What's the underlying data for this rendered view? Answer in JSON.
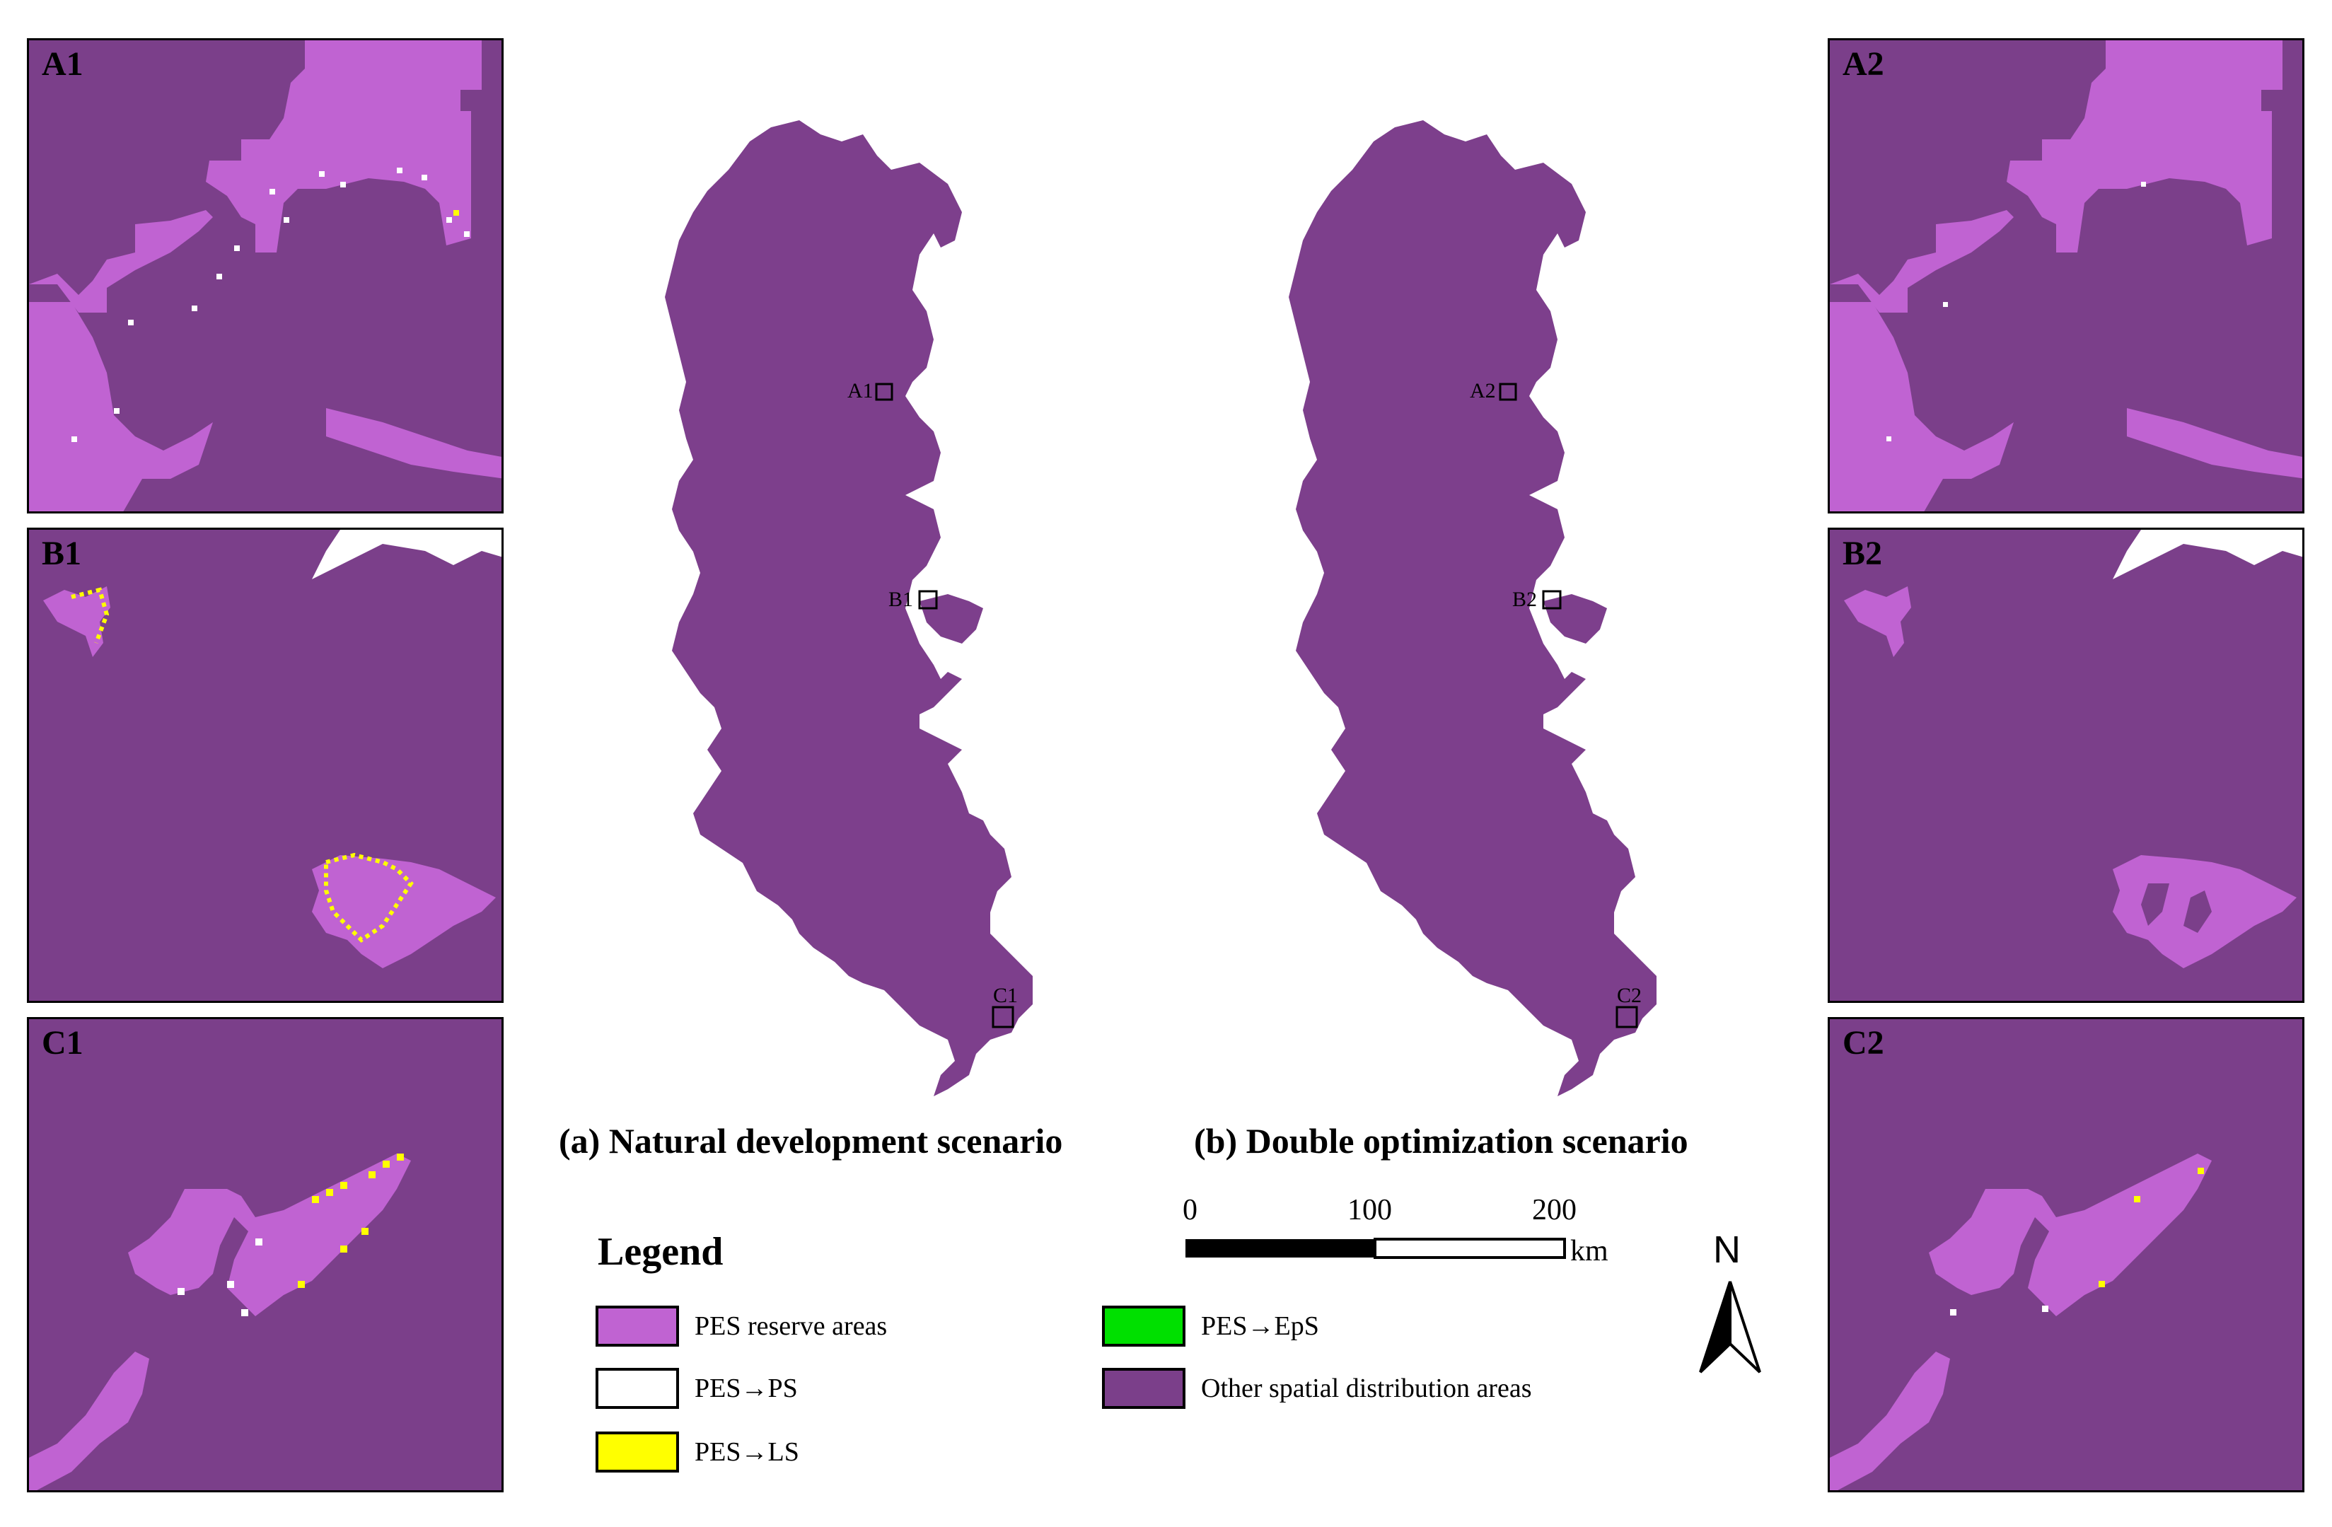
{
  "colors": {
    "pes_reserve": "#c063d2",
    "pes_ps": "#ffffff",
    "pes_ls": "#ffff00",
    "pes_eps": "#00e000",
    "other": "#7b3f8a",
    "map_fill": "#7d3f8c"
  },
  "panels": {
    "A1": "A1",
    "B1": "B1",
    "C1": "C1",
    "A2": "A2",
    "B2": "B2",
    "C2": "C2"
  },
  "maps": {
    "left": {
      "boxes": [
        "A1",
        "B1",
        "C1"
      ]
    },
    "right": {
      "boxes": [
        "A2",
        "B2",
        "C2"
      ]
    }
  },
  "captions": {
    "a": "(a) Natural development scenario",
    "b": "(b) Double optimization scenario"
  },
  "legend": {
    "title": "Legend",
    "items": [
      {
        "label": "PES reserve areas",
        "color": "#c063d2"
      },
      {
        "label": "PES→PS",
        "color": "#ffffff"
      },
      {
        "label": "PES→LS",
        "color": "#ffff00"
      },
      {
        "label": "PES→EpS",
        "color": "#00e000"
      },
      {
        "label": "Other spatial distribution areas",
        "color": "#7b3f8a"
      }
    ]
  },
  "scale_bar": {
    "ticks": [
      "0",
      "100",
      "200"
    ],
    "unit": "km"
  },
  "north_arrow": {
    "letter": "N",
    "icon": "north-arrow-icon"
  }
}
